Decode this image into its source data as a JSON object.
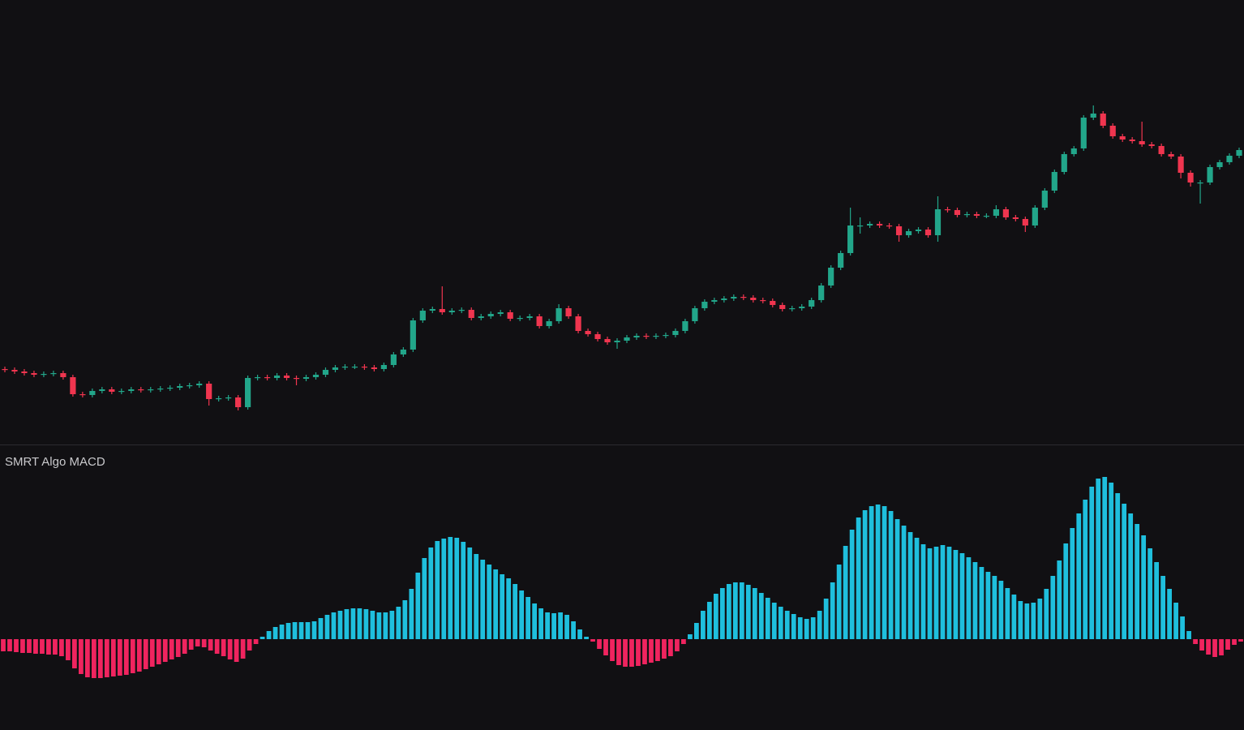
{
  "chart_data": [
    {
      "type": "candlestick",
      "up_color": "#22a68a",
      "down_color": "#f0354f",
      "ylim": [
        2,
        550
      ],
      "open": [
        95,
        94,
        92,
        90,
        88,
        89,
        90,
        85,
        64,
        63,
        68,
        70,
        67,
        68,
        70,
        69,
        70,
        71,
        72,
        74,
        75,
        77,
        58,
        59,
        60,
        48,
        84,
        85,
        84,
        87,
        84,
        83,
        85,
        88,
        94,
        97,
        98,
        98,
        97,
        95,
        100,
        113,
        119,
        155,
        167,
        169,
        165,
        167,
        168,
        158,
        160,
        163,
        165,
        157,
        158,
        160,
        148,
        154,
        170,
        160,
        142,
        138,
        132,
        128,
        130,
        134,
        136,
        135,
        136,
        137,
        142,
        154,
        170,
        178,
        180,
        182,
        184,
        183,
        180,
        179,
        174,
        169,
        170,
        172,
        180,
        198,
        220,
        238,
        272,
        272,
        274,
        272,
        271,
        260,
        265,
        267,
        260,
        292,
        291,
        285,
        286,
        284,
        284,
        292,
        282,
        280,
        272,
        294,
        315,
        338,
        360,
        367,
        405,
        410,
        395,
        382,
        378,
        376,
        372,
        370,
        360,
        357,
        337,
        325,
        325,
        344,
        350,
        358
      ],
      "high": [
        98,
        97,
        95,
        93,
        92,
        93,
        93,
        88,
        67,
        71,
        73,
        73,
        71,
        73,
        73,
        73,
        74,
        75,
        77,
        78,
        80,
        80,
        62,
        63,
        63,
        87,
        88,
        88,
        90,
        90,
        87,
        88,
        91,
        97,
        100,
        101,
        101,
        101,
        100,
        103,
        116,
        122,
        158,
        170,
        172,
        197,
        170,
        171,
        171,
        163,
        166,
        168,
        168,
        161,
        163,
        163,
        157,
        175,
        173,
        163,
        145,
        141,
        135,
        133,
        137,
        139,
        139,
        139,
        140,
        145,
        157,
        173,
        181,
        183,
        185,
        187,
        187,
        186,
        183,
        182,
        177,
        173,
        175,
        183,
        201,
        223,
        241,
        294,
        282,
        277,
        277,
        275,
        274,
        268,
        270,
        270,
        308,
        295,
        294,
        289,
        289,
        287,
        297,
        295,
        285,
        283,
        297,
        318,
        341,
        363,
        370,
        408,
        420,
        413,
        398,
        385,
        381,
        400,
        375,
        373,
        363,
        360,
        340,
        328,
        347,
        353,
        361,
        368
      ],
      "low": [
        91,
        89,
        87,
        85,
        85,
        86,
        82,
        61,
        60,
        60,
        65,
        64,
        64,
        65,
        66,
        66,
        67,
        68,
        69,
        71,
        72,
        50,
        55,
        56,
        44,
        45,
        81,
        81,
        81,
        81,
        75,
        80,
        82,
        85,
        91,
        94,
        95,
        94,
        92,
        92,
        97,
        110,
        116,
        152,
        164,
        162,
        162,
        164,
        155,
        155,
        157,
        160,
        154,
        154,
        155,
        145,
        145,
        151,
        157,
        139,
        135,
        129,
        125,
        120,
        127,
        131,
        132,
        132,
        133,
        134,
        139,
        151,
        167,
        175,
        177,
        179,
        180,
        177,
        176,
        171,
        166,
        166,
        167,
        169,
        177,
        195,
        217,
        235,
        262,
        269,
        269,
        268,
        252,
        257,
        262,
        257,
        252,
        288,
        282,
        282,
        281,
        281,
        281,
        279,
        277,
        264,
        269,
        291,
        312,
        335,
        357,
        364,
        402,
        392,
        379,
        375,
        373,
        369,
        367,
        357,
        354,
        330,
        320,
        299,
        322,
        341,
        347,
        355
      ],
      "close": [
        94,
        92,
        90,
        88,
        89,
        90,
        85,
        64,
        63,
        68,
        70,
        67,
        68,
        70,
        69,
        70,
        71,
        72,
        74,
        75,
        77,
        58,
        59,
        60,
        48,
        84,
        85,
        84,
        87,
        84,
        83,
        85,
        88,
        94,
        97,
        98,
        98,
        97,
        95,
        100,
        113,
        119,
        155,
        167,
        169,
        165,
        167,
        168,
        158,
        160,
        163,
        165,
        157,
        158,
        160,
        148,
        154,
        170,
        160,
        142,
        138,
        132,
        128,
        130,
        134,
        136,
        135,
        136,
        137,
        142,
        154,
        170,
        178,
        180,
        182,
        184,
        183,
        180,
        179,
        174,
        169,
        170,
        172,
        180,
        198,
        220,
        238,
        272,
        272,
        274,
        272,
        271,
        260,
        265,
        267,
        260,
        292,
        291,
        285,
        286,
        284,
        284,
        292,
        282,
        280,
        272,
        294,
        315,
        338,
        360,
        367,
        405,
        410,
        395,
        382,
        378,
        376,
        372,
        370,
        360,
        357,
        337,
        325,
        325,
        344,
        350,
        358,
        365
      ]
    },
    {
      "type": "bar",
      "title": "SMRT Algo MACD",
      "positive_color": "#1fbfdd",
      "negative_color": "#f0245f",
      "ylim": [
        -112,
        239
      ],
      "values": [
        -15,
        -15,
        -16,
        -17,
        -17,
        -18,
        -18,
        -19,
        -19,
        -21,
        -26,
        -36,
        -43,
        -47,
        -48,
        -48,
        -47,
        -46,
        -45,
        -44,
        -42,
        -40,
        -37,
        -34,
        -31,
        -28,
        -25,
        -22,
        -18,
        -13,
        -9,
        -10,
        -14,
        -18,
        -21,
        -25,
        -28,
        -24,
        -14,
        -6,
        3,
        10,
        15,
        18,
        20,
        21,
        21,
        21,
        22,
        26,
        30,
        33,
        35,
        37,
        38,
        38,
        37,
        35,
        33,
        33,
        35,
        40,
        48,
        62,
        82,
        100,
        113,
        121,
        124,
        126,
        125,
        120,
        113,
        105,
        98,
        92,
        86,
        80,
        75,
        68,
        60,
        52,
        44,
        38,
        33,
        32,
        33,
        30,
        22,
        12,
        3,
        -3,
        -12,
        -20,
        -27,
        -32,
        -34,
        -34,
        -33,
        -31,
        -29,
        -27,
        -24,
        -21,
        -15,
        -6,
        6,
        20,
        35,
        46,
        56,
        63,
        68,
        70,
        70,
        67,
        63,
        57,
        51,
        45,
        40,
        35,
        31,
        27,
        25,
        27,
        35,
        50,
        70,
        92,
        115,
        135,
        150,
        159,
        164,
        166,
        164,
        158,
        148,
        140,
        132,
        125,
        117,
        112,
        114,
        116,
        114,
        110,
        106,
        101,
        95,
        89,
        83,
        78,
        72,
        63,
        55,
        47,
        44,
        45,
        50,
        62,
        78,
        97,
        118,
        137,
        155,
        172,
        188,
        198,
        200,
        193,
        180,
        167,
        155,
        142,
        128,
        112,
        95,
        78,
        62,
        45,
        28,
        10,
        -6,
        -14,
        -19,
        -22,
        -20,
        -13,
        -7,
        -3
      ]
    }
  ]
}
